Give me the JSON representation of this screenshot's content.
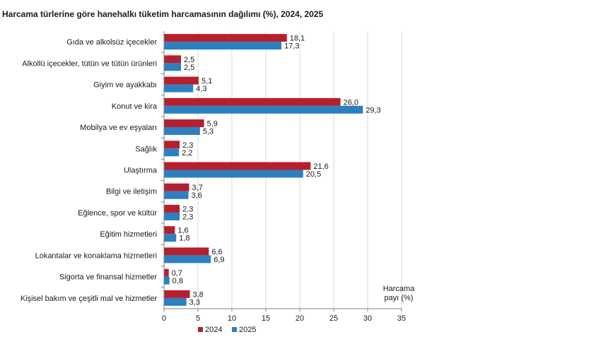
{
  "chart_data": {
    "type": "bar",
    "orientation": "horizontal",
    "title": "Harcama türlerine göre hanehalkı tüketim harcamasının dağılımı (%), 2024, 2025",
    "xlabel": "Harcama payı  (%)",
    "xlabel_lines": [
      "Harcama",
      "payı  (%)"
    ],
    "ylabel": "",
    "xlim": [
      0,
      35
    ],
    "xticks": [
      0,
      5,
      10,
      15,
      20,
      25,
      30,
      35
    ],
    "grid": true,
    "legend_position": "bottom",
    "categories": [
      "Gıda ve alkolsüz içecekler",
      "Alkollü içecekler, tütün ve tütün ürünleri",
      "Giyim ve ayakkabı",
      "Konut ve kira",
      "Mobilya ve ev eşyaları",
      "Sağlık",
      "Ulaştırma",
      "Bilgi ve iletişim",
      "Eğlence, spor ve kültür",
      "Eğitim hizmetleri",
      "Lokantalar ve konaklama hizmetleri",
      "Sigorta ve finansal hizmetler",
      "Kişisel bakım ve çeşitli mal ve hizmetler"
    ],
    "series": [
      {
        "name": "2024",
        "color": "#b5202e",
        "values": [
          18.1,
          2.5,
          5.1,
          26.0,
          5.9,
          2.3,
          21.6,
          3.7,
          2.3,
          1.6,
          6.6,
          0.7,
          3.8
        ],
        "labels": [
          "18,1",
          "2,5",
          "5,1",
          "26,0",
          "5,9",
          "2,3",
          "21,6",
          "3,7",
          "2,3",
          "1,6",
          "6,6",
          "0,7",
          "3,8"
        ]
      },
      {
        "name": "2025",
        "color": "#2e7fc0",
        "values": [
          17.3,
          2.5,
          4.3,
          29.3,
          5.3,
          2.2,
          20.5,
          3.6,
          2.3,
          1.8,
          6.9,
          0.8,
          3.3
        ],
        "labels": [
          "17,3",
          "2,5",
          "4,3",
          "29,3",
          "5,3",
          "2,2",
          "20,5",
          "3,6",
          "2,3",
          "1,8",
          "6,9",
          "0,8",
          "3,3"
        ]
      }
    ]
  }
}
